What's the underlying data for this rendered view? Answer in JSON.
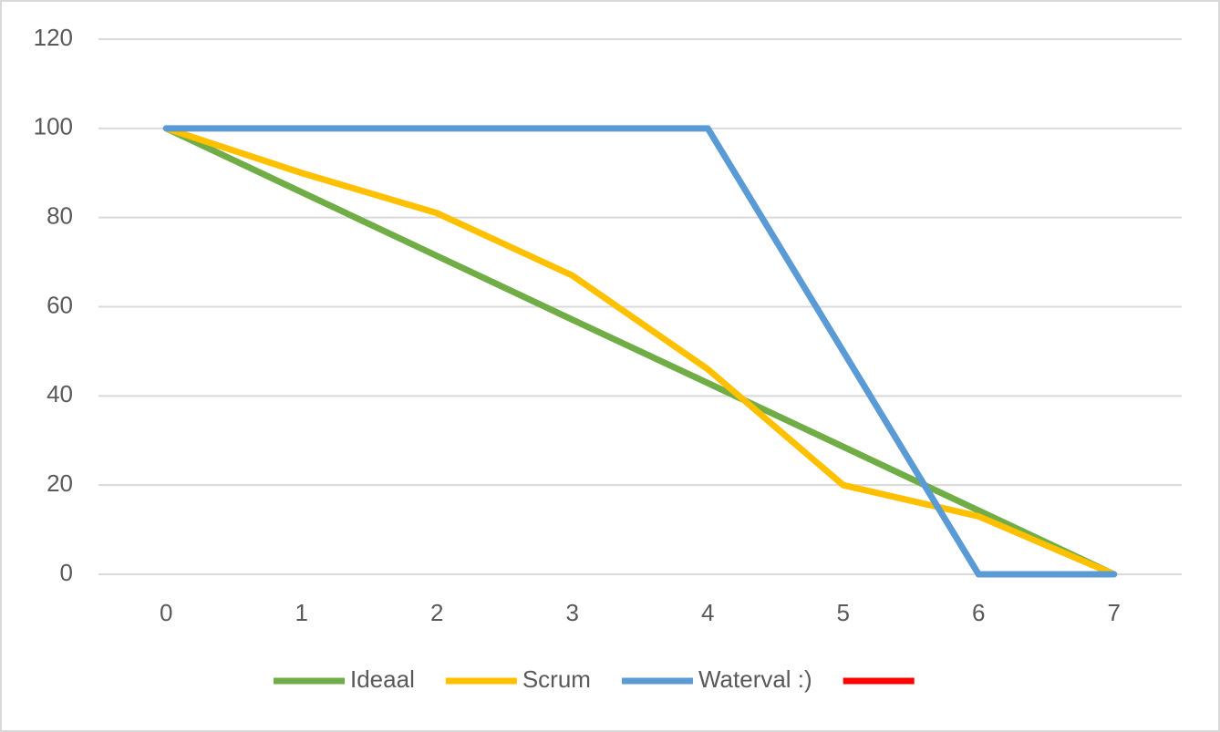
{
  "chart_data": {
    "type": "line",
    "x": [
      0,
      1,
      2,
      3,
      4,
      5,
      6,
      7
    ],
    "xlim": [
      -0.5,
      7.5
    ],
    "xticks": [
      0,
      1,
      2,
      3,
      4,
      5,
      6,
      7
    ],
    "ylim": [
      0,
      120
    ],
    "yticks": [
      0,
      20,
      40,
      60,
      80,
      100,
      120
    ],
    "grid": true,
    "legend": "bottom",
    "series": [
      {
        "name": "Ideaal",
        "color": "#70ad47",
        "values": [
          100,
          85.7,
          71.4,
          57.1,
          42.9,
          28.6,
          14.3,
          0
        ]
      },
      {
        "name": "Scrum",
        "color": "#ffc000",
        "values": [
          100,
          90,
          81,
          67,
          46,
          20,
          13,
          0
        ]
      },
      {
        "name": "Waterval :)",
        "color": "#5b9bd5",
        "values": [
          100,
          100,
          100,
          100,
          100,
          50,
          0,
          0
        ]
      },
      {
        "color": "#ff0000",
        "values": [
          null,
          null,
          null,
          null,
          null,
          null,
          null,
          null
        ]
      }
    ]
  }
}
